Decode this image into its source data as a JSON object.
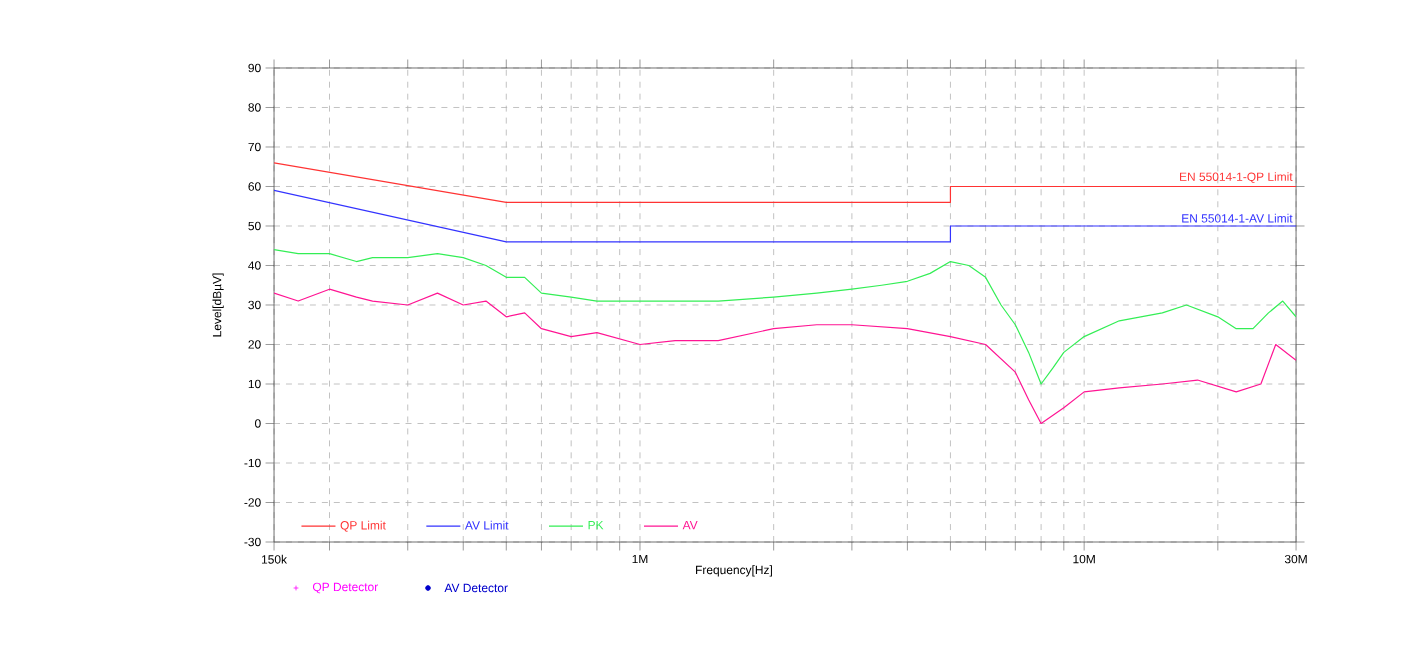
{
  "chart_data": {
    "type": "line",
    "xlabel": "Frequency[Hz]",
    "ylabel": "Level[dBµV]",
    "xlim": [
      150000,
      30000000
    ],
    "xticks": [
      {
        "value": 150000,
        "label": "150k"
      },
      {
        "value": 200000,
        "label": null
      },
      {
        "value": 300000,
        "label": null
      },
      {
        "value": 400000,
        "label": null
      },
      {
        "value": 500000,
        "label": null
      },
      {
        "value": 600000,
        "label": null
      },
      {
        "value": 700000,
        "label": null
      },
      {
        "value": 800000,
        "label": null
      },
      {
        "value": 900000,
        "label": null
      },
      {
        "value": 1000000,
        "label": "1M"
      },
      {
        "value": 2000000,
        "label": null
      },
      {
        "value": 3000000,
        "label": null
      },
      {
        "value": 4000000,
        "label": null
      },
      {
        "value": 5000000,
        "label": null
      },
      {
        "value": 6000000,
        "label": null
      },
      {
        "value": 7000000,
        "label": null
      },
      {
        "value": 8000000,
        "label": null
      },
      {
        "value": 9000000,
        "label": null
      },
      {
        "value": 10000000,
        "label": "10M"
      },
      {
        "value": 20000000,
        "label": null
      },
      {
        "value": 30000000,
        "label": "30M"
      }
    ],
    "ylim": [
      -30,
      90
    ],
    "yticks": [
      -30,
      -20,
      -10,
      0,
      10,
      20,
      30,
      40,
      50,
      60,
      70,
      80,
      90
    ],
    "log": "x",
    "grid": true,
    "legend": "bottom left",
    "marker": "none",
    "line_style": "solid",
    "series": [
      {
        "name": "QP Limit",
        "color": "#ff3333",
        "x": [
          150000,
          500000,
          5000000,
          5000000,
          30000000
        ],
        "values": [
          66,
          56,
          56,
          60,
          60
        ]
      },
      {
        "name": "AV Limit",
        "color": "#3333ff",
        "x": [
          150000,
          500000,
          5000000,
          5000000,
          30000000
        ],
        "values": [
          59,
          46,
          46,
          50,
          50
        ]
      },
      {
        "name": "PK",
        "color": "#33ee55",
        "x": [
          150000,
          170000,
          200000,
          230000,
          250000,
          300000,
          350000,
          400000,
          450000,
          500000,
          550000,
          600000,
          700000,
          800000,
          1000000,
          1200000,
          1500000,
          2000000,
          2500000,
          3000000,
          3500000,
          4000000,
          4500000,
          5000000,
          5500000,
          6000000,
          6500000,
          7000000,
          7500000,
          8000000,
          8500000,
          9000000,
          10000000,
          12000000,
          15000000,
          17000000,
          20000000,
          22000000,
          24000000,
          26000000,
          28000000,
          30000000
        ],
        "values": [
          44,
          43,
          43,
          41,
          42,
          42,
          43,
          42,
          40,
          37,
          37,
          33,
          32,
          31,
          31,
          31,
          31,
          32,
          33,
          34,
          35,
          36,
          38,
          41,
          40,
          37,
          30,
          25,
          18,
          10,
          14,
          18,
          22,
          26,
          28,
          30,
          27,
          24,
          24,
          28,
          31,
          27
        ]
      },
      {
        "name": "AV",
        "color": "#ff1493",
        "x": [
          150000,
          170000,
          200000,
          230000,
          250000,
          300000,
          350000,
          400000,
          450000,
          500000,
          550000,
          600000,
          700000,
          800000,
          1000000,
          1200000,
          1500000,
          2000000,
          2500000,
          3000000,
          4000000,
          5000000,
          6000000,
          7000000,
          7500000,
          8000000,
          9000000,
          10000000,
          12000000,
          15000000,
          18000000,
          22000000,
          25000000,
          27000000,
          30000000
        ],
        "values": [
          33,
          31,
          34,
          32,
          31,
          30,
          33,
          30,
          31,
          27,
          28,
          24,
          22,
          23,
          20,
          21,
          21,
          24,
          25,
          25,
          24,
          22,
          20,
          13,
          6,
          0,
          4,
          8,
          9,
          10,
          11,
          8,
          10,
          20,
          16
        ]
      },
      {
        "name": "QP Detector",
        "type": "scatter",
        "marker": "cross",
        "color": "#ff00ff"
      },
      {
        "name": "AV Detector",
        "type": "scatter",
        "marker": "circle",
        "color": "#0000cc"
      }
    ],
    "annotations": [
      "EN 55014-1-QP Limit",
      "EN 55014-1-AV Limit"
    ]
  }
}
